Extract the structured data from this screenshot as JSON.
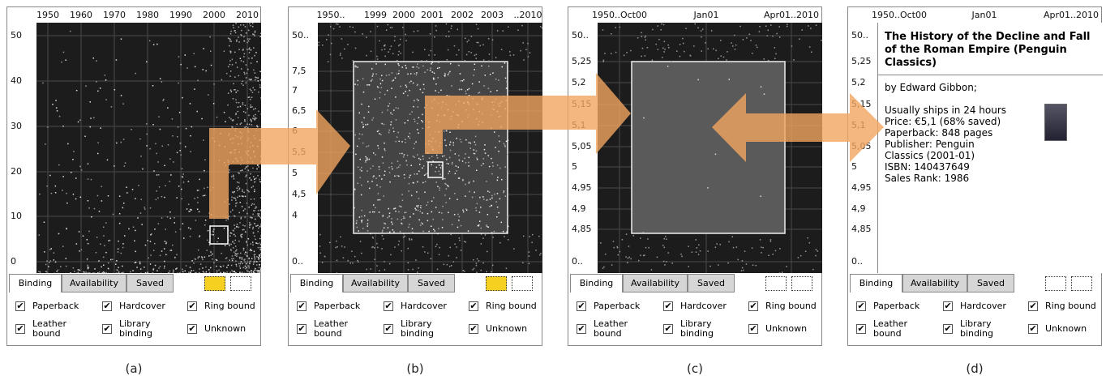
{
  "panels": [
    {
      "caption": "(a)",
      "x_labels": [
        "1950",
        "1960",
        "1970",
        "1980",
        "1990",
        "2000",
        "2010"
      ],
      "y_labels": [
        "50",
        "40",
        "30",
        "20",
        "10",
        "0"
      ]
    },
    {
      "caption": "(b)",
      "x_labels": [
        "1950..",
        "1999",
        "2000",
        "2001",
        "2002",
        "2003",
        "..2010"
      ],
      "y_labels": [
        "50..",
        "7,5",
        "7",
        "6,5",
        "6",
        "5,5",
        "5",
        "4,5",
        "4",
        "0.."
      ]
    },
    {
      "caption": "(c)",
      "x_labels": [
        "1950..Oct00",
        "Jan01",
        "Apr01..2010"
      ],
      "y_labels": [
        "50..",
        "5,25",
        "5,2",
        "5,15",
        "5,1",
        "5,05",
        "5",
        "4,95",
        "4,9",
        "4,85",
        "0.."
      ]
    },
    {
      "caption": "(d)",
      "x_labels": [
        "1950..Oct00",
        "Jan01",
        "Apr01..2010"
      ],
      "y_labels": [
        "50..",
        "5,25",
        "5,2",
        "5,15",
        "5,1",
        "5,05",
        "5",
        "4,95",
        "4,9",
        "4,85",
        "0.."
      ]
    }
  ],
  "controls": {
    "tabs": [
      "Binding",
      "Availability",
      "Saved"
    ],
    "checkboxes": [
      "Paperback",
      "Hardcover",
      "Ring bound",
      "Leather bound",
      "Library binding",
      "Unknown"
    ]
  },
  "info": {
    "title": "The History of the Decline and Fall of the Roman Empire (Penguin Classics)",
    "author": "by Edward  Gibbon;",
    "lines": [
      "Usually ships in 24 hours",
      "Price: €5,1 (68% saved)",
      "Paperback: 848 pages",
      "Publisher: Penguin",
      "Classics (2001-01)",
      "ISBN: 140437649",
      "Sales Rank: 1986"
    ]
  }
}
